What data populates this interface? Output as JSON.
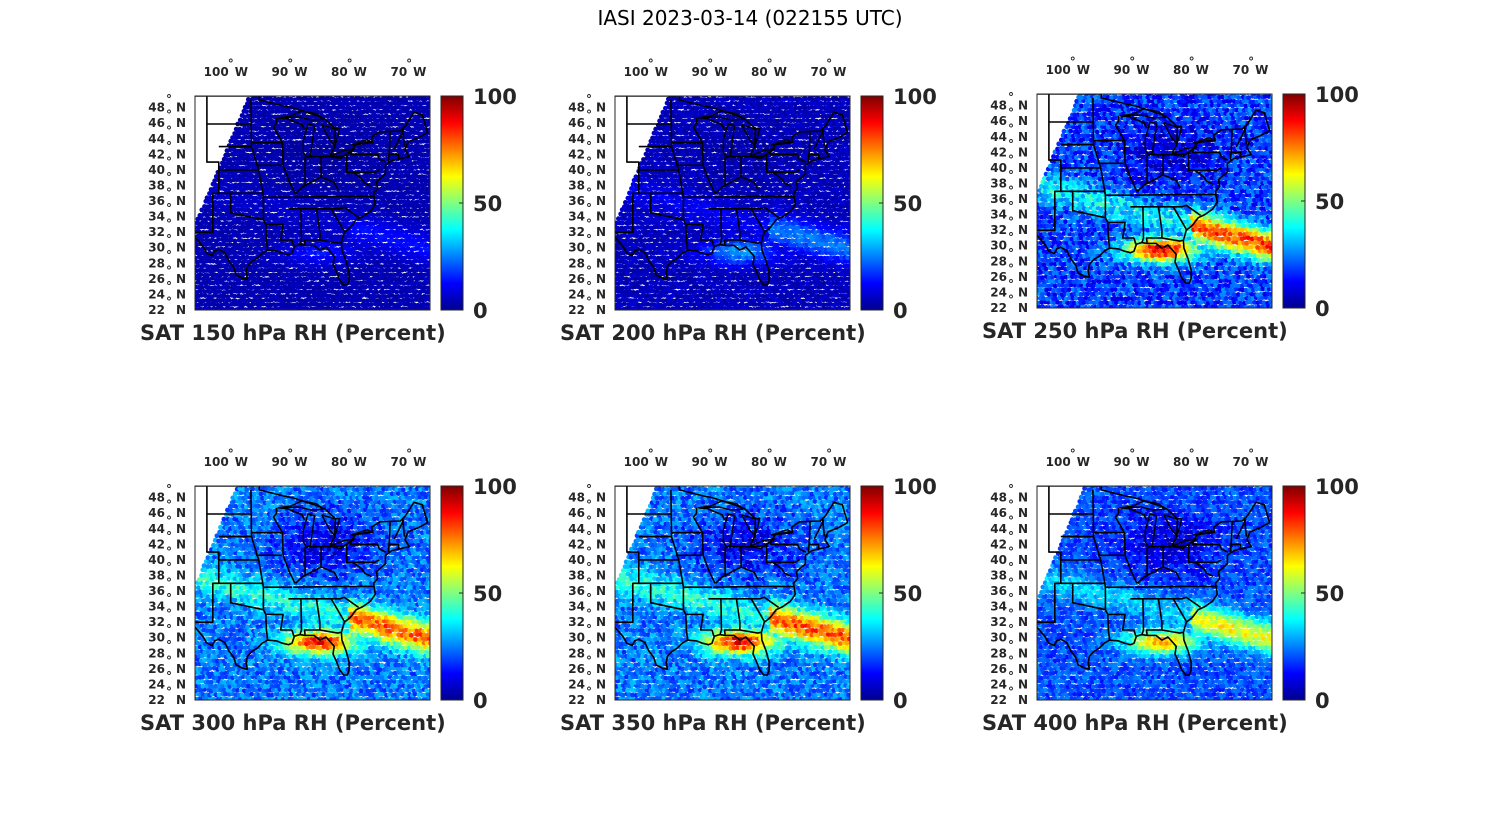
{
  "figure": {
    "title": "IASI 2023-03-14 (022155 UTC)"
  },
  "lon_labels": [
    {
      "deg": "100",
      "hemi": "W",
      "lon": -100
    },
    {
      "deg": "90",
      "hemi": "W",
      "lon": -90
    },
    {
      "deg": "80",
      "hemi": "W",
      "lon": -80
    },
    {
      "deg": "70",
      "hemi": "W",
      "lon": -70
    }
  ],
  "lat_labels": [
    {
      "deg": "48",
      "hemi": "N",
      "lat": 48
    },
    {
      "deg": "46",
      "hemi": "N",
      "lat": 46
    },
    {
      "deg": "44",
      "hemi": "N",
      "lat": 44
    },
    {
      "deg": "42",
      "hemi": "N",
      "lat": 42
    },
    {
      "deg": "40",
      "hemi": "N",
      "lat": 40
    },
    {
      "deg": "38",
      "hemi": "N",
      "lat": 38
    },
    {
      "deg": "36",
      "hemi": "N",
      "lat": 36
    },
    {
      "deg": "34",
      "hemi": "N",
      "lat": 34
    },
    {
      "deg": "32",
      "hemi": "N",
      "lat": 32
    },
    {
      "deg": "30",
      "hemi": "N",
      "lat": 30
    },
    {
      "deg": "28",
      "hemi": "N",
      "lat": 28
    },
    {
      "deg": "26",
      "hemi": "N",
      "lat": 26
    },
    {
      "deg": "24",
      "hemi": "N",
      "lat": 24
    },
    {
      "deg": "22",
      "hemi": "N",
      "lat": 22
    }
  ],
  "colorbar": {
    "min": 0,
    "max": 100,
    "ticks": [
      "100",
      "50",
      "0"
    ],
    "colormap": [
      "#00008f",
      "#0000ff",
      "#0080ff",
      "#00ffff",
      "#80ff80",
      "#ffff00",
      "#ff8000",
      "#ff0000",
      "#800000"
    ]
  },
  "map_extent": {
    "lon_min": -106,
    "lon_max": -66.5,
    "lat_min": 22,
    "lat_max": 49.5
  },
  "panels": [
    {
      "id": "p150",
      "title": "SAT 150 hPa RH (Percent)",
      "field": {
        "base_rh": 4,
        "moist_rh": 15,
        "dry_rh": 2,
        "swath_west_lon": -97
      }
    },
    {
      "id": "p200",
      "title": "SAT 200 hPa RH (Percent)",
      "field": {
        "base_rh": 5,
        "moist_rh": 28,
        "dry_rh": 3,
        "swath_west_lon": -97
      }
    },
    {
      "id": "p250",
      "title": "SAT 250 hPa RH (Percent)",
      "field": {
        "base_rh": 18,
        "moist_rh": 92,
        "dry_rh": 8,
        "swath_west_lon": -99
      }
    },
    {
      "id": "p300",
      "title": "SAT 300 hPa RH (Percent)",
      "field": {
        "base_rh": 24,
        "moist_rh": 88,
        "dry_rh": 10,
        "swath_west_lon": -99
      }
    },
    {
      "id": "p350",
      "title": "SAT 350 hPa RH (Percent)",
      "field": {
        "base_rh": 24,
        "moist_rh": 90,
        "dry_rh": 10,
        "swath_west_lon": -99
      }
    },
    {
      "id": "p400",
      "title": "SAT 400 hPa RH (Percent)",
      "field": {
        "base_rh": 20,
        "moist_rh": 70,
        "dry_rh": 8,
        "swath_west_lon": -98
      }
    }
  ]
}
